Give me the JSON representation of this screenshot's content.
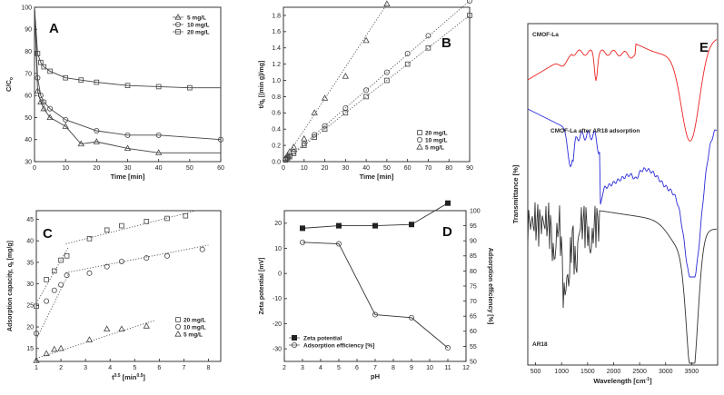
{
  "chart_data": [
    {
      "panel": "A",
      "type": "line",
      "xlabel": "Time [min]",
      "ylabel": "C/C",
      "ylabel_sub": "o",
      "xlim": [
        0,
        60
      ],
      "ylim": [
        30,
        100
      ],
      "xticks": [
        0,
        10,
        20,
        30,
        40,
        50,
        60
      ],
      "yticks": [
        30,
        40,
        50,
        60,
        70,
        80,
        90,
        100
      ],
      "legend_position": "top-right",
      "series": [
        {
          "name": "5 mg/L",
          "marker": "triangle",
          "x": [
            0,
            1,
            2,
            3,
            5,
            10,
            15,
            20,
            30,
            40,
            60
          ],
          "y": [
            100,
            62,
            57,
            54,
            50,
            46,
            38,
            39,
            36,
            34,
            34
          ],
          "marker_x": [
            1,
            2,
            3,
            5,
            10,
            15,
            20,
            30,
            40
          ]
        },
        {
          "name": "10 mg/L",
          "marker": "circle",
          "x": [
            0,
            1,
            2,
            3,
            5,
            10,
            20,
            30,
            40,
            60
          ],
          "y": [
            100,
            68,
            60,
            57,
            54,
            49,
            44,
            42,
            42,
            40
          ],
          "marker_x": [
            1,
            2,
            3,
            5,
            10,
            20,
            30,
            40,
            60
          ]
        },
        {
          "name": "20 mg/L",
          "marker": "square",
          "x": [
            0,
            1,
            2,
            3,
            5,
            10,
            15,
            20,
            30,
            40,
            50,
            60
          ],
          "y": [
            100,
            79,
            75,
            73,
            71,
            68,
            67,
            66,
            64.5,
            64,
            63.5,
            63.5
          ],
          "marker_x": [
            1,
            2,
            3,
            5,
            10,
            15,
            20,
            30,
            40,
            50
          ]
        }
      ]
    },
    {
      "panel": "B",
      "type": "scatter",
      "xlabel": "Time [min]",
      "ylabel": "t/q [(min g)/mg]",
      "ylabel_sub": "t",
      "xlim": [
        0,
        90
      ],
      "ylim": [
        0,
        1.9
      ],
      "xticks": [
        0,
        10,
        20,
        30,
        40,
        50,
        60,
        70,
        80,
        90
      ],
      "yticks": [
        0.0,
        0.2,
        0.4,
        0.6,
        0.8,
        1.0,
        1.2,
        1.4,
        1.6,
        1.8
      ],
      "ytick_labels": [
        "0.0",
        "0.2",
        "0.4",
        "0.6",
        "0.8",
        "1.0",
        "1.2",
        "1.4",
        "1.6",
        "1.8"
      ],
      "legend_position": "bottom-right",
      "series": [
        {
          "name": "20 mg/L",
          "marker": "square",
          "x": [
            1,
            2,
            3,
            5,
            10,
            15,
            20,
            30,
            40,
            50,
            60,
            70,
            90
          ],
          "y": [
            0.02,
            0.04,
            0.06,
            0.1,
            0.2,
            0.3,
            0.4,
            0.6,
            0.8,
            1.0,
            1.2,
            1.4,
            1.8
          ],
          "fit": [
            [
              0,
              0
            ],
            [
              90,
              1.8
            ]
          ]
        },
        {
          "name": "10 mg/L",
          "marker": "circle",
          "x": [
            1,
            2,
            3,
            5,
            10,
            15,
            20,
            30,
            40,
            50,
            60,
            70,
            90
          ],
          "y": [
            0.03,
            0.05,
            0.07,
            0.12,
            0.22,
            0.33,
            0.44,
            0.66,
            0.88,
            1.1,
            1.33,
            1.55,
            1.98
          ],
          "fit": [
            [
              0,
              0
            ],
            [
              90,
              1.98
            ]
          ]
        },
        {
          "name": "5 mg/L",
          "marker": "triangle",
          "x": [
            1,
            2,
            3,
            5,
            10,
            15,
            20,
            30,
            40,
            50
          ],
          "y": [
            0.04,
            0.08,
            0.12,
            0.18,
            0.28,
            0.6,
            0.78,
            1.05,
            1.49,
            1.94
          ],
          "fit": [
            [
              0,
              0
            ],
            [
              50,
              1.94
            ]
          ]
        }
      ]
    },
    {
      "panel": "C",
      "type": "scatter",
      "xlabel": "t",
      "xlabel_sup": "0.5",
      "xlabel_unit": " [min",
      "xlabel_unit_sup": "0.5",
      "xlabel_end": "]",
      "ylabel": "Adsorption capacity, q",
      "ylabel_sub": "t",
      "ylabel_unit": " [mg/g]",
      "xlim": [
        1,
        8.5
      ],
      "ylim": [
        12,
        47
      ],
      "xticks": [
        1,
        2,
        3,
        4,
        5,
        6,
        7,
        8
      ],
      "yticks": [
        15,
        20,
        25,
        30,
        35,
        40,
        45
      ],
      "legend_position": "bottom-right",
      "series": [
        {
          "name": "20 mg/L",
          "marker": "square",
          "x": [
            1.0,
            1.41,
            1.73,
            2.0,
            2.24,
            3.16,
            3.87,
            4.47,
            5.48,
            6.32,
            7.07
          ],
          "y": [
            24.8,
            31.0,
            33.0,
            35.5,
            36.5,
            40.5,
            42.5,
            43.5,
            44.5,
            45.2,
            45.8
          ],
          "fits": [
            [
              [
                1.0,
                25.5
              ],
              [
                2.3,
                38.5
              ]
            ],
            [
              [
                2.2,
                39.3
              ],
              [
                7.5,
                47.0
              ]
            ]
          ]
        },
        {
          "name": "10 mg/L",
          "marker": "circle",
          "x": [
            1.0,
            1.41,
            1.73,
            2.0,
            2.24,
            3.16,
            3.87,
            4.47,
            5.48,
            6.32,
            7.75
          ],
          "y": [
            18.5,
            26.0,
            28.5,
            29.8,
            32.0,
            32.5,
            34.0,
            35.2,
            36.0,
            36.5,
            38.0
          ],
          "fits": [
            [
              [
                1.0,
                17.2
              ],
              [
                2.3,
                32.2
              ]
            ],
            [
              [
                2.2,
                32.6
              ],
              [
                8.0,
                39.0
              ]
            ]
          ]
        },
        {
          "name": "5 mg/L",
          "marker": "triangle",
          "x": [
            1.0,
            1.41,
            1.73,
            2.0,
            3.16,
            3.87,
            4.47,
            5.48
          ],
          "y": [
            12.2,
            13.8,
            14.8,
            15.0,
            17.0,
            19.5,
            19.5,
            20.2
          ],
          "fits": [
            [
              [
                1.0,
                12.7
              ],
              [
                5.8,
                21.5
              ]
            ]
          ]
        }
      ]
    },
    {
      "panel": "D",
      "type": "line",
      "xlabel": "pH",
      "ylabel": "Zeta potential [mV]",
      "y2label": "Adsorption efficiency [%]",
      "xlim": [
        2,
        12
      ],
      "ylim": [
        -35,
        25
      ],
      "y2lim": [
        50,
        100
      ],
      "xticks": [
        2,
        3,
        4,
        5,
        6,
        7,
        8,
        9,
        10,
        11,
        12
      ],
      "yticks": [
        -30,
        -20,
        -10,
        0,
        10,
        20
      ],
      "y2ticks": [
        50,
        55,
        60,
        65,
        70,
        75,
        80,
        85,
        90,
        95,
        100
      ],
      "legend_position": "bottom-left",
      "series": [
        {
          "name": "Zeta potential",
          "marker": "filled-square",
          "axis": "left",
          "x": [
            3,
            5,
            7,
            9,
            11
          ],
          "y": [
            18,
            19,
            19,
            19.5,
            28
          ]
        },
        {
          "name": "Adsorption efficiency [%]",
          "marker": "circle",
          "axis": "right",
          "x": [
            3,
            5,
            7,
            9,
            11
          ],
          "y": [
            89.5,
            89,
            65.5,
            64.5,
            54.5
          ]
        }
      ]
    },
    {
      "panel": "E",
      "type": "line",
      "xlabel": "Wavelength [cm",
      "xlabel_sup": "-1",
      "xlabel_end": "]",
      "ylabel": "Transmittance [%]",
      "xlim": [
        350,
        4000
      ],
      "xticks": [
        500,
        1000,
        1500,
        2000,
        2500,
        3000,
        3500
      ],
      "series": [
        {
          "name": "CMOF-La",
          "color": "#ee2222"
        },
        {
          "name": "CMOF-La after AR18 adsorption",
          "color": "#2b2bd9"
        },
        {
          "name": "AR18",
          "color": "#333333"
        }
      ]
    }
  ]
}
